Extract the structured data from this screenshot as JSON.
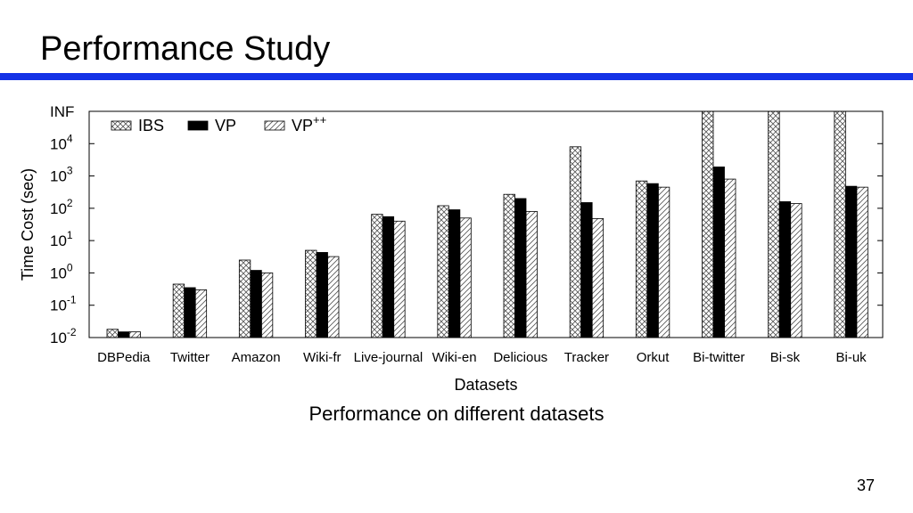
{
  "slide": {
    "title": "Performance Study",
    "caption": "Performance on different datasets",
    "page_number": "37",
    "accent_color": "#1432e6"
  },
  "chart_data": {
    "type": "bar",
    "xlabel": "Datasets",
    "ylabel": "Time Cost (sec)",
    "y_scale": "log",
    "ylim": [
      0.01,
      "INF"
    ],
    "yticks": [
      "10^-2",
      "10^-1",
      "10^0",
      "10^1",
      "10^2",
      "10^3",
      "10^4",
      "INF"
    ],
    "legend_position": "top-left",
    "categories": [
      "DBPedia",
      "Twitter",
      "Amazon",
      "Wiki-fr",
      "Live-journal",
      "Wiki-en",
      "Delicious",
      "Tracker",
      "Orkut",
      "Bi-twitter",
      "Bi-sk",
      "Bi-uk"
    ],
    "series": [
      {
        "name": "IBS",
        "pattern": "crosshatch",
        "values": [
          0.018,
          0.45,
          2.5,
          5,
          65,
          120,
          270,
          8000,
          700,
          "INF",
          "INF",
          "INF"
        ]
      },
      {
        "name": "VP",
        "pattern": "solid",
        "values": [
          0.015,
          0.35,
          1.2,
          4.3,
          55,
          90,
          200,
          150,
          580,
          1900,
          160,
          480
        ]
      },
      {
        "name": "VP++",
        "name_base": "VP",
        "name_sup": "++",
        "pattern": "diagonal",
        "values": [
          0.015,
          0.3,
          1.0,
          3.2,
          40,
          50,
          80,
          48,
          450,
          800,
          140,
          450
        ]
      }
    ]
  }
}
